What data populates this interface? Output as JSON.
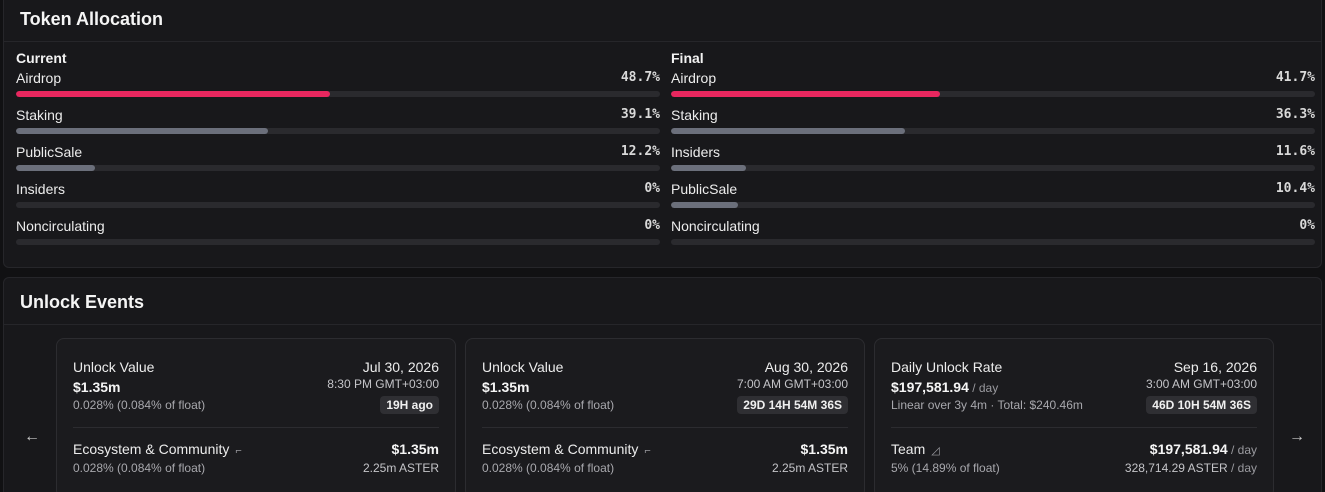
{
  "allocation": {
    "title": "Token Allocation",
    "current": {
      "title": "Current",
      "rows": [
        {
          "label": "Airdrop",
          "pct_text": "48.7%",
          "value": 48.7,
          "color": "#e8275f"
        },
        {
          "label": "Staking",
          "pct_text": "39.1%",
          "value": 39.1,
          "color": "#6b6f7b"
        },
        {
          "label": "PublicSale",
          "pct_text": "12.2%",
          "value": 12.2,
          "color": "#6b6f7b"
        },
        {
          "label": "Insiders",
          "pct_text": "0%",
          "value": 0,
          "color": "#6b6f7b"
        },
        {
          "label": "Noncirculating",
          "pct_text": "0%",
          "value": 0,
          "color": "#6b6f7b"
        }
      ]
    },
    "final": {
      "title": "Final",
      "rows": [
        {
          "label": "Airdrop",
          "pct_text": "41.7%",
          "value": 41.7,
          "color": "#e8275f"
        },
        {
          "label": "Staking",
          "pct_text": "36.3%",
          "value": 36.3,
          "color": "#6b6f7b"
        },
        {
          "label": "Insiders",
          "pct_text": "11.6%",
          "value": 11.6,
          "color": "#6b6f7b"
        },
        {
          "label": "PublicSale",
          "pct_text": "10.4%",
          "value": 10.4,
          "color": "#6b6f7b"
        },
        {
          "label": "Noncirculating",
          "pct_text": "0%",
          "value": 0,
          "color": "#6b6f7b"
        }
      ]
    }
  },
  "unlock": {
    "title": "Unlock Events",
    "prev_icon": "arrow-left-icon",
    "next_icon": "arrow-right-icon",
    "events": [
      {
        "title": "Unlock Value",
        "date": "Jul 30, 2026",
        "amount": "$1.35m",
        "amount_unit": "",
        "time": "8:30 PM GMT+03:00",
        "sub": "0.028% (0.084% of float)",
        "badge": "19H ago",
        "category": "Ecosystem & Community",
        "category_icon": "step-chart-icon",
        "category_value": "$1.35m",
        "category_value_unit": "",
        "category_pct": "0.028% (0.084% of float)",
        "tokens": "2.25m ASTER",
        "tokens_unit": ""
      },
      {
        "title": "Unlock Value",
        "date": "Aug 30, 2026",
        "amount": "$1.35m",
        "amount_unit": "",
        "time": "7:00 AM GMT+03:00",
        "sub": "0.028% (0.084% of float)",
        "badge": "29D 14H 54M 36S",
        "category": "Ecosystem & Community",
        "category_icon": "step-chart-icon",
        "category_value": "$1.35m",
        "category_value_unit": "",
        "category_pct": "0.028% (0.084% of float)",
        "tokens": "2.25m ASTER",
        "tokens_unit": ""
      },
      {
        "title": "Daily Unlock Rate",
        "date": "Sep 16, 2026",
        "amount": "$197,581.94",
        "amount_unit": " / day",
        "time": "3:00 AM GMT+03:00",
        "sub": "Linear over 3y 4m · Total: $240.46m",
        "badge": "46D 10H 54M 36S",
        "category": "Team",
        "category_icon": "linear-chart-icon",
        "category_value": "$197,581.94",
        "category_value_unit": " / day",
        "category_pct": "5% (14.89% of float)",
        "tokens": "328,714.29 ASTER",
        "tokens_unit": " / day"
      }
    ]
  }
}
